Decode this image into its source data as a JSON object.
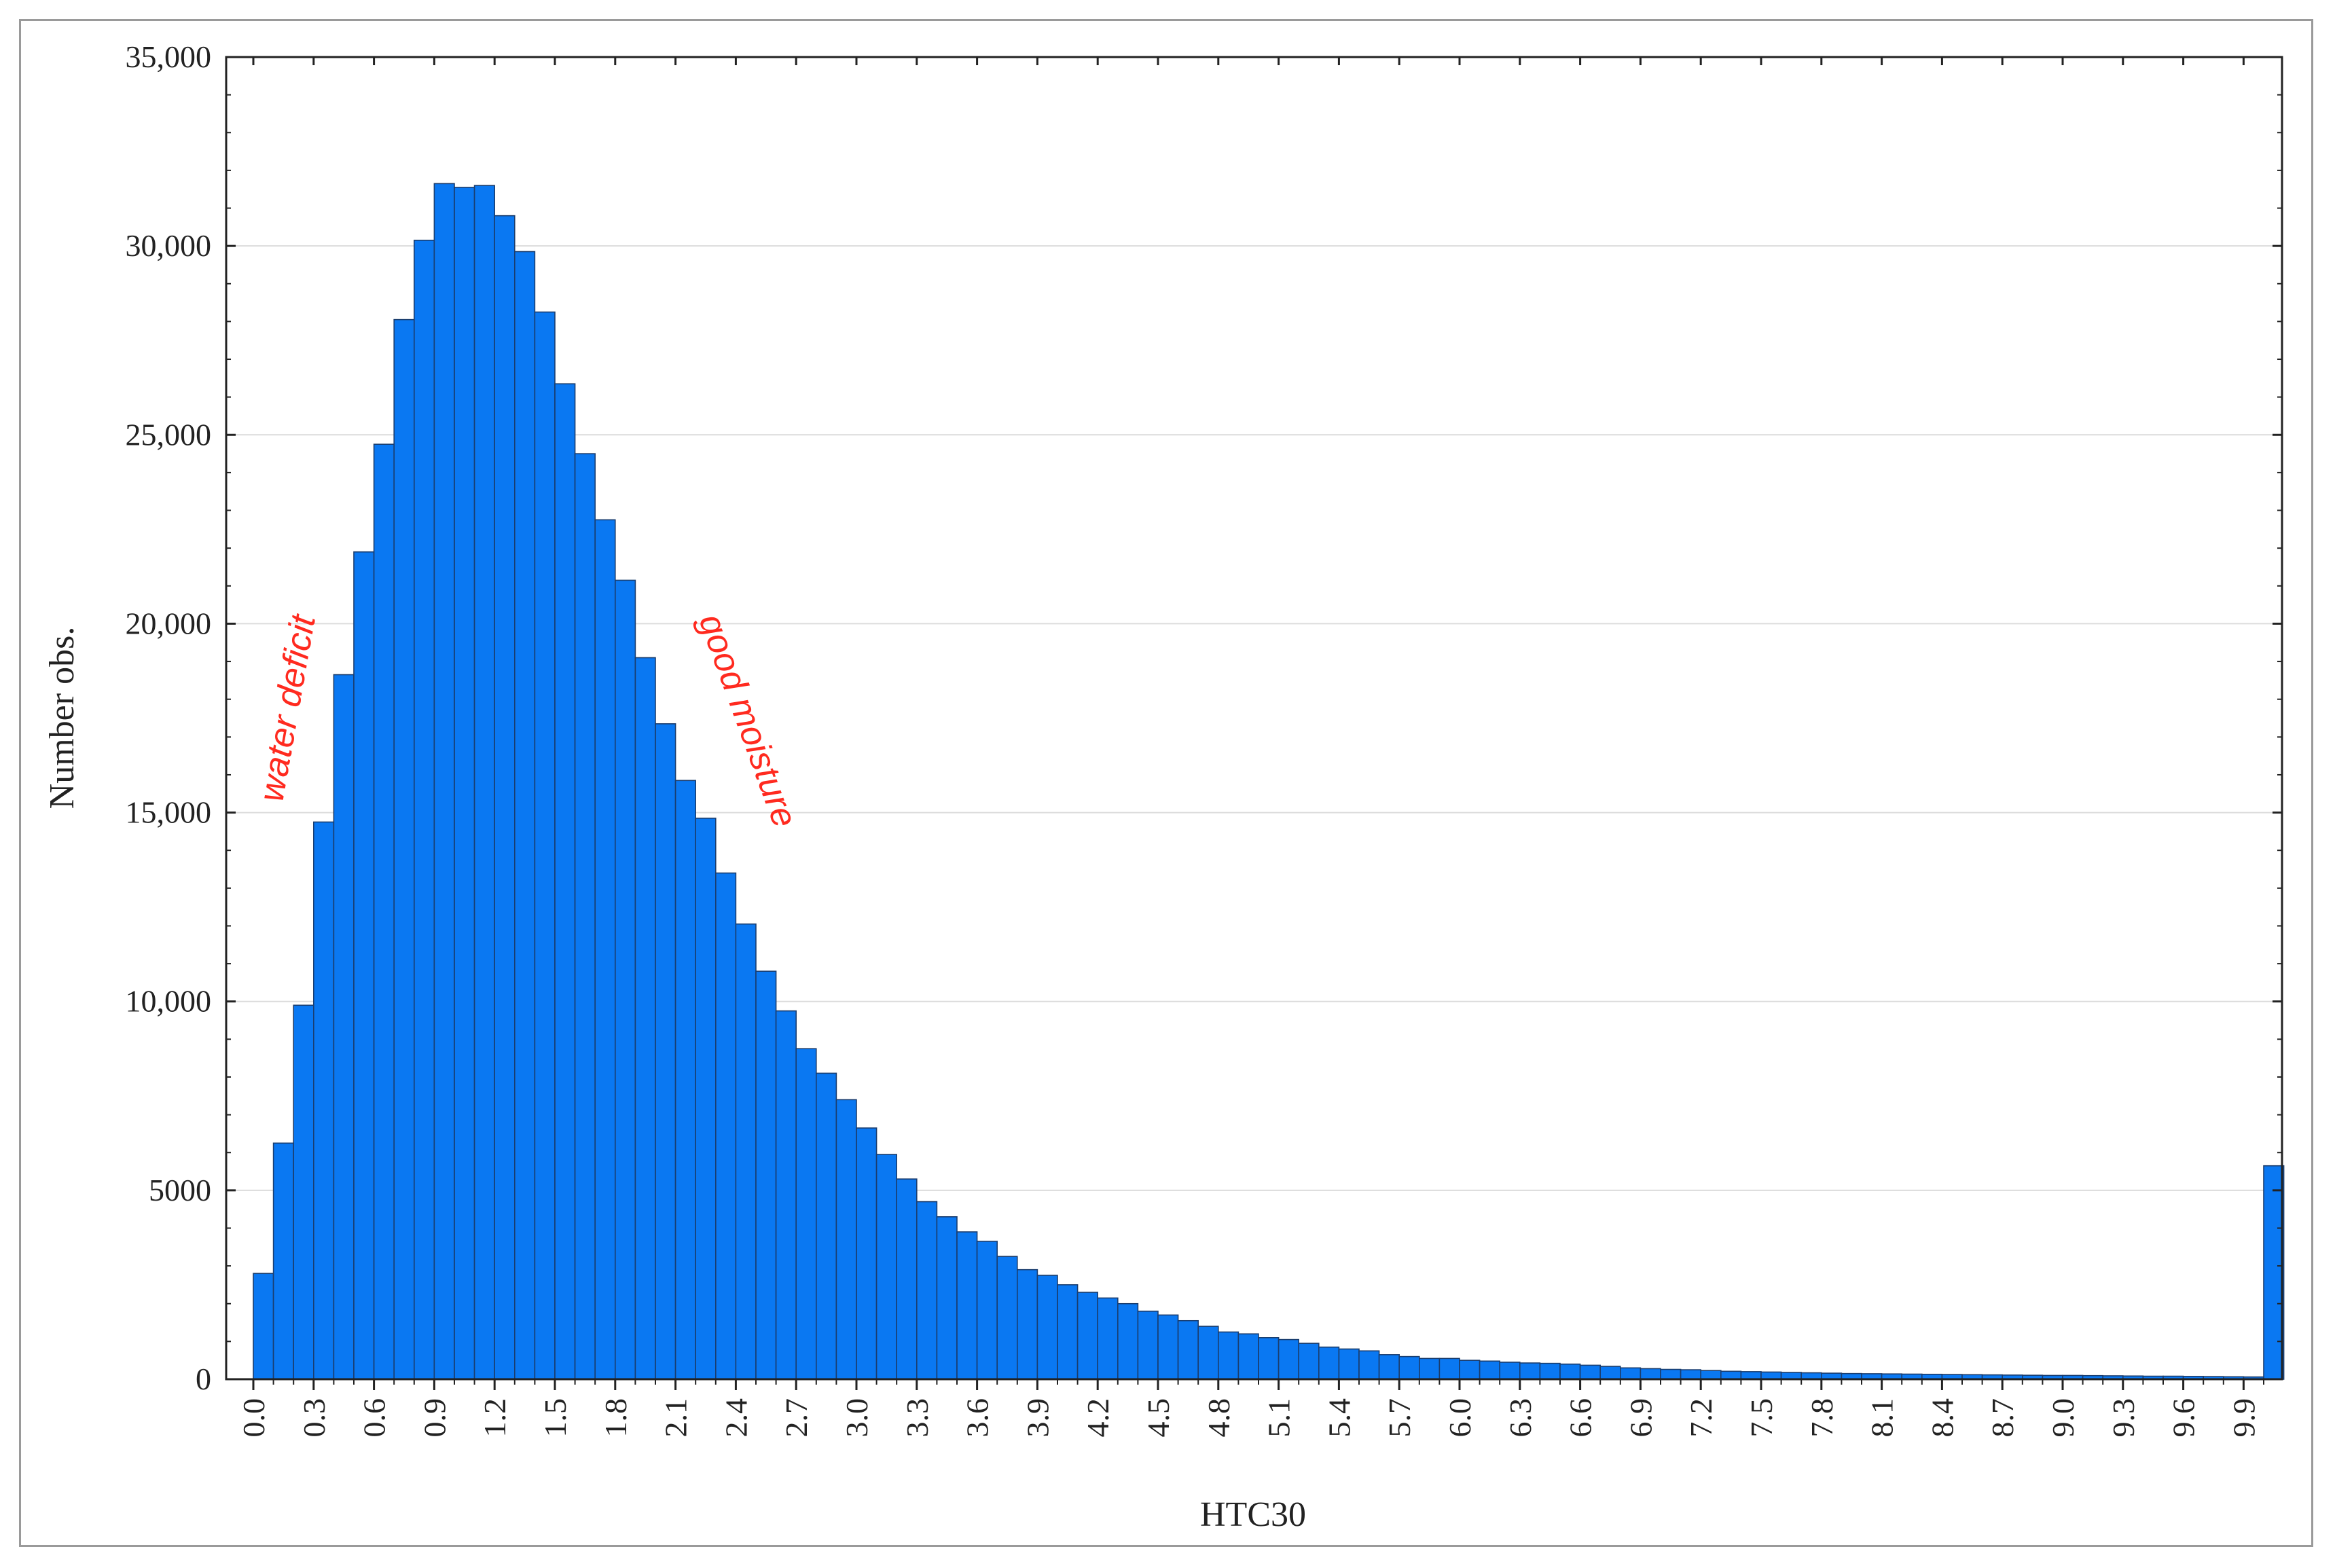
{
  "chart_data": {
    "type": "bar",
    "title": "",
    "xlabel": "HTC30",
    "ylabel": "Number obs.",
    "ylim": [
      0,
      35000
    ],
    "yticks": [
      0,
      5000,
      10000,
      15000,
      20000,
      25000,
      30000,
      35000
    ],
    "ytick_labels": [
      "0",
      "5000",
      "10,000",
      "15,000",
      "20,000",
      "25,000",
      "30,000",
      "35,000"
    ],
    "xtick_labels": [
      "0.0",
      "0.3",
      "0.6",
      "0.9",
      "1.2",
      "1.5",
      "1.8",
      "2.1",
      "2.4",
      "2.7",
      "3.0",
      "3.3",
      "3.6",
      "3.9",
      "4.2",
      "4.5",
      "4.8",
      "5.1",
      "5.4",
      "5.7",
      "6.0",
      "6.3",
      "6.6",
      "6.9",
      "7.2",
      "7.5",
      "7.8",
      "8.1",
      "8.4",
      "8.7",
      "9.0",
      "9.3",
      "9.6",
      "9.9"
    ],
    "bin_width": 0.1,
    "bin_starts": [
      0.0,
      0.1,
      0.2,
      0.3,
      0.4,
      0.5,
      0.6,
      0.7,
      0.8,
      0.9,
      1.0,
      1.1,
      1.2,
      1.3,
      1.4,
      1.5,
      1.6,
      1.7,
      1.8,
      1.9,
      2.0,
      2.1,
      2.2,
      2.3,
      2.4,
      2.5,
      2.6,
      2.7,
      2.8,
      2.9,
      3.0,
      3.1,
      3.2,
      3.3,
      3.4,
      3.5,
      3.6,
      3.7,
      3.8,
      3.9,
      4.0,
      4.1,
      4.2,
      4.3,
      4.4,
      4.5,
      4.6,
      4.7,
      4.8,
      4.9,
      5.0,
      5.1,
      5.2,
      5.3,
      5.4,
      5.5,
      5.6,
      5.7,
      5.8,
      5.9,
      6.0,
      6.1,
      6.2,
      6.3,
      6.4,
      6.5,
      6.6,
      6.7,
      6.8,
      6.9,
      7.0,
      7.1,
      7.2,
      7.3,
      7.4,
      7.5,
      7.6,
      7.7,
      7.8,
      7.9,
      8.0,
      8.1,
      8.2,
      8.3,
      8.4,
      8.5,
      8.6,
      8.7,
      8.8,
      8.9,
      9.0,
      9.1,
      9.2,
      9.3,
      9.4,
      9.5,
      9.6,
      9.7,
      9.8,
      9.9,
      10.0
    ],
    "values": [
      2800,
      6250,
      9900,
      14750,
      18650,
      21900,
      24750,
      28050,
      30150,
      31650,
      31550,
      31600,
      30800,
      29850,
      28250,
      26350,
      24500,
      22750,
      21150,
      19100,
      17350,
      15850,
      14850,
      13400,
      12050,
      10800,
      9750,
      8750,
      8100,
      7400,
      6650,
      5950,
      5300,
      4700,
      4300,
      3900,
      3650,
      3250,
      2900,
      2750,
      2500,
      2300,
      2150,
      2000,
      1800,
      1700,
      1550,
      1400,
      1250,
      1200,
      1100,
      1050,
      950,
      850,
      800,
      750,
      650,
      600,
      550,
      550,
      500,
      480,
      450,
      430,
      420,
      400,
      370,
      340,
      300,
      280,
      260,
      250,
      230,
      210,
      200,
      190,
      180,
      170,
      160,
      150,
      145,
      140,
      135,
      130,
      125,
      120,
      115,
      110,
      105,
      100,
      100,
      95,
      90,
      85,
      80,
      80,
      75,
      70,
      65,
      60,
      5650
    ],
    "bar_color": "#0a78f2",
    "bar_edge_color": "#1a3d6e",
    "grid": true,
    "annotations": [
      {
        "text": "water deficit",
        "color": "#ff2a1f"
      },
      {
        "text": "good moisture",
        "color": "#ff2a1f"
      }
    ]
  }
}
